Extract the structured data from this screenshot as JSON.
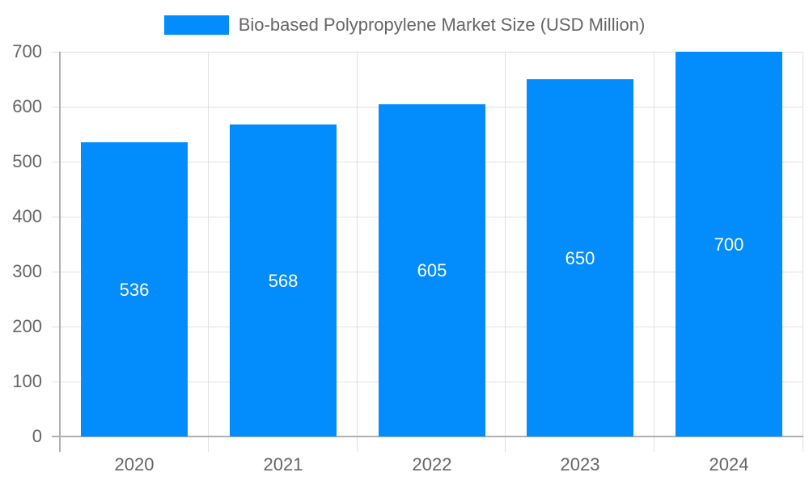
{
  "chart_data": {
    "type": "bar",
    "title": "",
    "legend": [
      "Bio-based Polypropylene Market Size (USD Million)"
    ],
    "legend_position": "top",
    "categories": [
      "2020",
      "2021",
      "2022",
      "2023",
      "2024"
    ],
    "series": [
      {
        "name": "Bio-based Polypropylene Market Size (USD Million)",
        "values": [
          536,
          568,
          605,
          650,
          700
        ],
        "color": "#038cfc"
      }
    ],
    "xlabel": "",
    "ylabel": "",
    "ylim": [
      0,
      700
    ],
    "yticks": [
      "0",
      "100",
      "200",
      "300",
      "400",
      "500",
      "600",
      "700"
    ],
    "grid": true,
    "data_labels": [
      "536",
      "568",
      "605",
      "650",
      "700"
    ]
  }
}
